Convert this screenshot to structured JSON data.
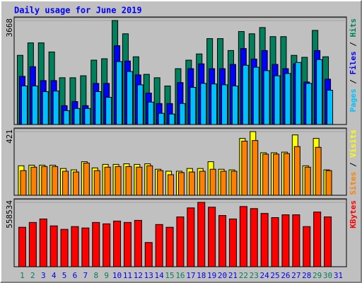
{
  "title": "Daily usage for June 2019",
  "chart_data": [
    {
      "type": "bar",
      "legend_separator": " / ",
      "categories": [
        "1",
        "2",
        "3",
        "4",
        "5",
        "6",
        "7",
        "8",
        "9",
        "10",
        "11",
        "12",
        "13",
        "14",
        "15",
        "16",
        "17",
        "18",
        "19",
        "20",
        "21",
        "22",
        "23",
        "24",
        "25",
        "26",
        "27",
        "28",
        "29",
        "30",
        "31"
      ],
      "ylim": [
        0,
        3668
      ],
      "yticks": [
        3668
      ],
      "series": [
        {
          "name": "Hits",
          "color": "#00805c",
          "values": [
            2440,
            2880,
            2880,
            2560,
            1650,
            1650,
            1720,
            2270,
            2320,
            3668,
            3200,
            2390,
            1770,
            1650,
            1360,
            1970,
            2270,
            2490,
            3030,
            3030,
            2610,
            3280,
            3200,
            3420,
            3100,
            3100,
            2440,
            2370,
            3320,
            2390,
            null
          ]
        },
        {
          "name": "Files",
          "color": "#0000ff",
          "values": [
            1700,
            2040,
            1550,
            1550,
            665,
            810,
            665,
            1450,
            1450,
            2780,
            2240,
            1750,
            1110,
            740,
            740,
            1480,
            1970,
            2140,
            1970,
            1970,
            2120,
            2680,
            2310,
            2610,
            2120,
            1970,
            2140,
            1500,
            2610,
            1600,
            null
          ]
        },
        {
          "name": "Pages",
          "color": "#00c0ff",
          "values": [
            1360,
            1360,
            1160,
            1180,
            490,
            565,
            565,
            1160,
            960,
            2220,
            1870,
            1400,
            790,
            395,
            370,
            740,
            1310,
            1450,
            1430,
            1400,
            1360,
            2090,
            2020,
            1900,
            1720,
            1800,
            2190,
            1450,
            2290,
            1210,
            null
          ]
        }
      ]
    },
    {
      "type": "bar",
      "legend_separator": " / ",
      "categories": [
        "1",
        "2",
        "3",
        "4",
        "5",
        "6",
        "7",
        "8",
        "9",
        "10",
        "11",
        "12",
        "13",
        "14",
        "15",
        "16",
        "17",
        "18",
        "19",
        "20",
        "21",
        "22",
        "23",
        "24",
        "25",
        "26",
        "27",
        "28",
        "29",
        "30",
        "31"
      ],
      "ylim": [
        0,
        421
      ],
      "yticks": [
        421
      ],
      "series": [
        {
          "name": "Visits",
          "color": "#ffff00",
          "values": [
            195,
            199,
            199,
            199,
            177,
            168,
            222,
            181,
            204,
            204,
            208,
            204,
            208,
            172,
            159,
            159,
            177,
            177,
            222,
            172,
            168,
            376,
            421,
            281,
            281,
            285,
            399,
            195,
            376,
            168,
            null
          ]
        },
        {
          "name": "Sites",
          "color": "#ff8000",
          "values": [
            163,
            186,
            190,
            190,
            159,
            154,
            213,
            163,
            186,
            190,
            190,
            186,
            195,
            163,
            136,
            150,
            154,
            159,
            172,
            159,
            159,
            358,
            362,
            272,
            272,
            276,
            322,
            186,
            317,
            163,
            null
          ]
        }
      ]
    },
    {
      "type": "bar",
      "legend_separator": " / ",
      "categories": [
        "1",
        "2",
        "3",
        "4",
        "5",
        "6",
        "7",
        "8",
        "9",
        "10",
        "11",
        "12",
        "13",
        "14",
        "15",
        "16",
        "17",
        "18",
        "19",
        "20",
        "21",
        "22",
        "23",
        "24",
        "25",
        "26",
        "27",
        "28",
        "29",
        "30",
        "31"
      ],
      "category_colors": [
        "#00805c",
        "#00805c",
        "#0000ff",
        "#0000ff",
        "#0000ff",
        "#0000ff",
        "#0000ff",
        "#00805c",
        "#00805c",
        "#0000ff",
        "#0000ff",
        "#0000ff",
        "#0000ff",
        "#0000ff",
        "#00805c",
        "#00805c",
        "#0000ff",
        "#0000ff",
        "#0000ff",
        "#0000ff",
        "#0000ff",
        "#00805c",
        "#00805c",
        "#0000ff",
        "#0000ff",
        "#0000ff",
        "#0000ff",
        "#0000ff",
        "#00805c",
        "#00805c",
        "#0000ff"
      ],
      "ylim": [
        0,
        558534
      ],
      "yticks": [
        558534
      ],
      "series": [
        {
          "name": "KBytes",
          "color": "#ff0000",
          "values": [
            342340,
            384380,
            414410,
            354350,
            324320,
            348350,
            336330,
            384380,
            372370,
            396400,
            384380,
            402400,
            210210,
            366370,
            342340,
            432430,
            510510,
            558534,
            516520,
            444440,
            414410,
            522520,
            504500,
            462460,
            426430,
            450450,
            450450,
            348350,
            474470,
            432430,
            null
          ]
        }
      ]
    }
  ]
}
